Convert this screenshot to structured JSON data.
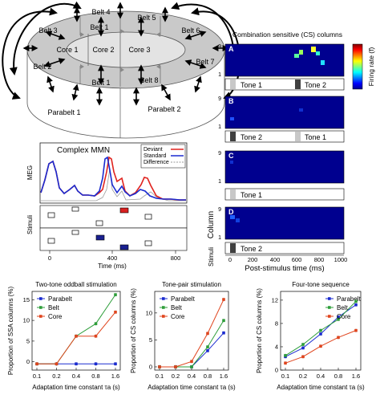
{
  "diagram": {
    "core_labels": [
      "Core 1",
      "Core 2",
      "Core 3"
    ],
    "belt_labels": [
      "Belt 1",
      "Belt 2",
      "Belt 3",
      "Belt 4",
      "Belt 5",
      "Belt 6",
      "Belt 7",
      "Belt 8",
      "Belt 1"
    ],
    "parabelt_labels": [
      "Parabelt 1",
      "Parabelt 2"
    ]
  },
  "cs_panel": {
    "title": "Combination sensitive (CS) columns",
    "rows": [
      {
        "letter": "A",
        "tones": [
          "Tone 1",
          "Tone 2"
        ]
      },
      {
        "letter": "B",
        "tones": [
          "Tone 2",
          "Tone 1"
        ]
      },
      {
        "letter": "C",
        "tones": [
          "Tone 1"
        ]
      },
      {
        "letter": "D",
        "tones": [
          "Tone 2"
        ]
      }
    ],
    "ytick_top": "9",
    "ytick_bottom": "1",
    "colorbar_label": "Firing rate (f)",
    "ylabel": "Column",
    "stimuli_label": "Stimuli",
    "xlabel": "Post-stimulus time (ms)",
    "xticks": [
      "0",
      "200",
      "400",
      "600",
      "800",
      "1000"
    ]
  },
  "meg_panel": {
    "title": "Complex MMN",
    "legend": [
      "Deviant",
      "Standard",
      "Difference"
    ],
    "ylabel": "MEG",
    "stimuli_label": "Stimuli",
    "xlabel": "Time (ms)",
    "xticks": [
      "0",
      "400",
      "800"
    ],
    "colors": {
      "deviant": "#e0231e",
      "standard": "#1a2bd0",
      "difference": "#9a9a9a"
    }
  },
  "chart_data": [
    {
      "type": "line",
      "title": "Two-tone oddball stimulation",
      "xlabel": "Adaptation time constant τa (s)",
      "ylabel": "Proportion of SSA columns (%)",
      "x": [
        0.1,
        0.2,
        0.4,
        0.8,
        1.6
      ],
      "xticks": [
        "0.1",
        "0.2",
        "0.4",
        "0.8",
        "1.6"
      ],
      "ylim": [
        -2,
        17
      ],
      "yticks": [
        0,
        5,
        10,
        15
      ],
      "series": [
        {
          "name": "Parabelt",
          "color": "#1a2bd0",
          "values": [
            -0.5,
            -0.5,
            -0.5,
            -0.5,
            -0.5
          ]
        },
        {
          "name": "Belt",
          "color": "#2e9e3a",
          "values": [
            -0.5,
            -0.5,
            6.2,
            9.2,
            16.2
          ]
        },
        {
          "name": "Core",
          "color": "#e0451e",
          "values": [
            -0.5,
            -0.5,
            6.2,
            6.2,
            12.0
          ]
        }
      ]
    },
    {
      "type": "line",
      "title": "Tone-pair stimulation",
      "xlabel": "Adaptation time constant τa (s)",
      "ylabel": "Proportion of CS columns (%)",
      "x": [
        0.1,
        0.2,
        0.4,
        0.8,
        1.6
      ],
      "xticks": [
        "0.1",
        "0.2",
        "0.4",
        "0.8",
        "1.6"
      ],
      "ylim": [
        -0.6,
        14
      ],
      "yticks": [
        0,
        5,
        10
      ],
      "series": [
        {
          "name": "Parabelt",
          "color": "#1a2bd0",
          "values": [
            0,
            0,
            0,
            3.0,
            6.3
          ]
        },
        {
          "name": "Belt",
          "color": "#2e9e3a",
          "values": [
            0,
            0,
            0,
            3.7,
            8.6
          ]
        },
        {
          "name": "Core",
          "color": "#e0451e",
          "values": [
            0,
            0,
            1.0,
            6.2,
            12.5
          ]
        }
      ]
    },
    {
      "type": "line",
      "title": "Four-tone sequence",
      "xlabel": "Adaptation time constant τa (s)",
      "ylabel": "Proportion of CS columns (%)",
      "x": [
        0.1,
        0.2,
        0.4,
        0.8,
        1.6
      ],
      "xticks": [
        "0.1",
        "0.2",
        "0.4",
        "0.8",
        "1.6"
      ],
      "ylim": [
        0,
        13.5
      ],
      "yticks": [
        0,
        4,
        8,
        12
      ],
      "series": [
        {
          "name": "Parabelt",
          "color": "#1a2bd0",
          "values": [
            2.3,
            3.8,
            6.2,
            9.1,
            11.2
          ]
        },
        {
          "name": "Belt",
          "color": "#2e9e3a",
          "values": [
            2.5,
            4.4,
            6.8,
            8.7,
            11.8
          ]
        },
        {
          "name": "Core",
          "color": "#e0451e",
          "values": [
            1.2,
            2.3,
            4.1,
            5.6,
            6.8
          ]
        }
      ]
    }
  ]
}
